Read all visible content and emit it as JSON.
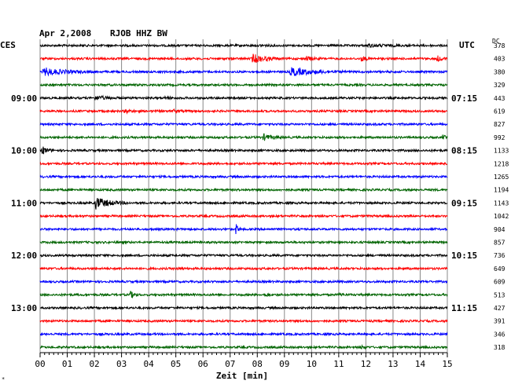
{
  "header": {
    "date": "Apr 2,2008",
    "station": "RJOB HHZ BW",
    "left_tz": "CES",
    "right_tz": "UTC",
    "dc_label": "DC"
  },
  "chart_data": {
    "type": "line",
    "title": "Apr 2,2008   RJOB HHZ BW",
    "xlabel": "Zeit [min]",
    "xlim": [
      0,
      15
    ],
    "x_ticks": [
      "00",
      "01",
      "02",
      "03",
      "04",
      "05",
      "06",
      "07",
      "08",
      "09",
      "10",
      "11",
      "12",
      "13",
      "14",
      "15"
    ],
    "grid": true,
    "left_time_labels": [
      {
        "row": 4,
        "label": "09:00"
      },
      {
        "row": 8,
        "label": "10:00"
      },
      {
        "row": 12,
        "label": "11:00"
      },
      {
        "row": 16,
        "label": "12:00"
      },
      {
        "row": 20,
        "label": "13:00"
      }
    ],
    "right_time_labels": [
      {
        "row": 4,
        "label": "07:15"
      },
      {
        "row": 8,
        "label": "08:15"
      },
      {
        "row": 12,
        "label": "09:15"
      },
      {
        "row": 16,
        "label": "10:15"
      },
      {
        "row": 20,
        "label": "11:15"
      }
    ],
    "color_cycle": [
      "#000000",
      "#ff0000",
      "#0000ff",
      "#006400"
    ],
    "dc_values": [
      378,
      403,
      380,
      329,
      443,
      619,
      827,
      992,
      1133,
      1218,
      1265,
      1194,
      1143,
      1042,
      904,
      857,
      736,
      649,
      609,
      513,
      427,
      391,
      346,
      318
    ],
    "events": [
      {
        "row": 0,
        "minute": 8.1,
        "amp": 1.5,
        "dur": 0.6
      },
      {
        "row": 0,
        "minute": 12.0,
        "amp": 1.4,
        "dur": 2.5
      },
      {
        "row": 1,
        "minute": 7.8,
        "amp": 6.0,
        "dur": 1.2
      },
      {
        "row": 1,
        "minute": 9.8,
        "amp": 3.0,
        "dur": 0.6
      },
      {
        "row": 1,
        "minute": 11.8,
        "amp": 3.0,
        "dur": 0.6
      },
      {
        "row": 1,
        "minute": 14.6,
        "amp": 4.0,
        "dur": 0.5
      },
      {
        "row": 2,
        "minute": 0.1,
        "amp": 5.0,
        "dur": 2.0
      },
      {
        "row": 2,
        "minute": 9.2,
        "amp": 5.5,
        "dur": 2.0
      },
      {
        "row": 4,
        "minute": 2.0,
        "amp": 2.5,
        "dur": 1.2
      },
      {
        "row": 4,
        "minute": 4.6,
        "amp": 2.5,
        "dur": 0.4
      },
      {
        "row": 5,
        "minute": 3.1,
        "amp": 2.5,
        "dur": 0.6
      },
      {
        "row": 5,
        "minute": 4.9,
        "amp": 2.0,
        "dur": 0.5
      },
      {
        "row": 7,
        "minute": 8.2,
        "amp": 4.0,
        "dur": 0.8
      },
      {
        "row": 7,
        "minute": 14.8,
        "amp": 3.0,
        "dur": 0.3
      },
      {
        "row": 8,
        "minute": 0.05,
        "amp": 6.0,
        "dur": 0.5
      },
      {
        "row": 12,
        "minute": 2.0,
        "amp": 8.0,
        "dur": 1.3
      },
      {
        "row": 14,
        "minute": 7.2,
        "amp": 8.0,
        "dur": 0.2
      },
      {
        "row": 17,
        "minute": 5.0,
        "amp": 2.0,
        "dur": 0.4
      },
      {
        "row": 19,
        "minute": 3.3,
        "amp": 4.5,
        "dur": 0.4
      },
      {
        "row": 19,
        "minute": 8.3,
        "amp": 2.5,
        "dur": 0.3
      },
      {
        "row": 19,
        "minute": 11.0,
        "amp": 2.5,
        "dur": 0.3
      },
      {
        "row": 23,
        "minute": 11.8,
        "amp": 2.0,
        "dur": 0.4
      }
    ]
  }
}
